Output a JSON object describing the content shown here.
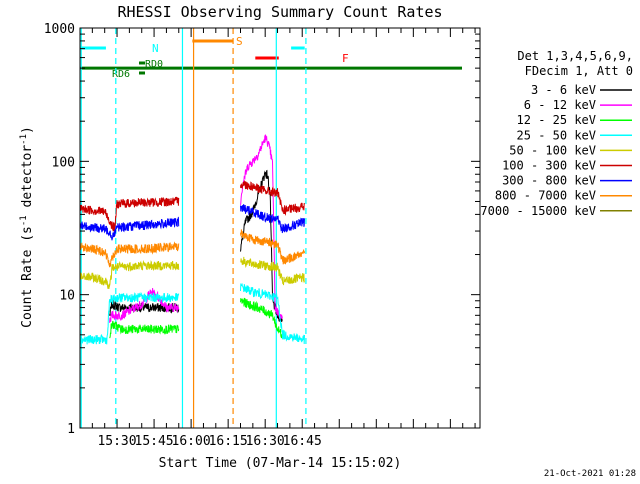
{
  "chart_data": {
    "type": "line",
    "title": "RHESSI Observing Summary Count Rates",
    "xlabel": "Start Time (07-Mar-14 15:15:02)",
    "ylabel_main": "Count Rate (s",
    "ylabel_sup1": "-1",
    "ylabel_mid": " detector",
    "ylabel_sup2": "-1",
    "ylabel_close": ")",
    "yscale": "log",
    "ylim": [
      1,
      1000
    ],
    "xlim_min": [
      15,
      177
    ],
    "y_ticks": [
      "1",
      "10",
      "100",
      "1000"
    ],
    "x_ticks": [
      {
        "label": "15:30",
        "min": 30
      },
      {
        "label": "15:45",
        "min": 45
      },
      {
        "label": "16:00",
        "min": 60
      },
      {
        "label": "16:15",
        "min": 75
      },
      {
        "label": "16:30",
        "min": 90
      },
      {
        "label": "16:45",
        "min": 105
      }
    ],
    "legend_header": [
      "Det 1,3,4,5,6,9,",
      "FDecim 1, Att 0"
    ],
    "series": [
      {
        "name": "3 - 6 keV",
        "color": "#000000",
        "seg1": [
          [
            27,
            7.0
          ],
          [
            28,
            8.5
          ],
          [
            31,
            8.0
          ],
          [
            45,
            8.0
          ],
          [
            55,
            8.0
          ]
        ],
        "seg2": [
          [
            80,
            22
          ],
          [
            82,
            35
          ],
          [
            85,
            42
          ],
          [
            87,
            55
          ],
          [
            89,
            72
          ],
          [
            90,
            82
          ],
          [
            91,
            78
          ],
          [
            92,
            58
          ],
          [
            93,
            9
          ],
          [
            95,
            7.0
          ],
          [
            97,
            6.5
          ]
        ]
      },
      {
        "name": "6 - 12 keV",
        "color": "#ff00ff",
        "seg1": [
          [
            27,
            6.5
          ],
          [
            28,
            7.0
          ],
          [
            32,
            7.0
          ],
          [
            40,
            8.5
          ],
          [
            44,
            10.5
          ],
          [
            47,
            9.5
          ],
          [
            50,
            8.0
          ],
          [
            55,
            8.0
          ]
        ],
        "seg2": [
          [
            80,
            50
          ],
          [
            81,
            70
          ],
          [
            83,
            92
          ],
          [
            85,
            100
          ],
          [
            87,
            112
          ],
          [
            89,
            135
          ],
          [
            90,
            150
          ],
          [
            91,
            140
          ],
          [
            92,
            120
          ],
          [
            93,
            95
          ],
          [
            94,
            8.0
          ],
          [
            96,
            7.0
          ],
          [
            97,
            6.5
          ]
        ]
      },
      {
        "name": "12 - 25 keV",
        "color": "#00ff00",
        "seg1": [
          [
            27,
            5.0
          ],
          [
            28,
            6.0
          ],
          [
            32,
            5.5
          ],
          [
            45,
            5.5
          ],
          [
            55,
            5.5
          ]
        ],
        "seg2": [
          [
            80,
            9.0
          ],
          [
            83,
            8.5
          ],
          [
            87,
            8.0
          ],
          [
            90,
            7.5
          ],
          [
            93,
            7.0
          ],
          [
            95,
            5.5
          ],
          [
            97,
            5.0
          ]
        ]
      },
      {
        "name": "25 - 50 keV",
        "color": "#00ffff",
        "seg1": [
          [
            15,
            4.6
          ],
          [
            20,
            4.6
          ],
          [
            26,
            4.6
          ],
          [
            27,
            9.0
          ],
          [
            30,
            9.5
          ],
          [
            40,
            9.5
          ],
          [
            55,
            9.5
          ]
        ],
        "seg2": [
          [
            80,
            11.5
          ],
          [
            85,
            10.5
          ],
          [
            90,
            10.0
          ],
          [
            95,
            9.5
          ],
          [
            97,
            5.0
          ],
          [
            106,
            4.6
          ]
        ]
      },
      {
        "name": "50 - 100 keV",
        "color": "#cccc00",
        "seg1": [
          [
            15,
            13.5
          ],
          [
            20,
            13.5
          ],
          [
            26,
            12.5
          ],
          [
            27,
            11.0
          ],
          [
            28,
            16.0
          ],
          [
            40,
            16.5
          ],
          [
            55,
            16.5
          ]
        ],
        "seg2": [
          [
            80,
            18
          ],
          [
            85,
            17
          ],
          [
            90,
            16.5
          ],
          [
            95,
            16.0
          ],
          [
            97,
            12.5
          ],
          [
            106,
            13.5
          ]
        ]
      },
      {
        "name": "100 - 300 keV",
        "color": "#cc0000",
        "seg1": [
          [
            15,
            44
          ],
          [
            20,
            43
          ],
          [
            25,
            42
          ],
          [
            27,
            36
          ],
          [
            28,
            33
          ],
          [
            29,
            31
          ],
          [
            30,
            48
          ],
          [
            40,
            49
          ],
          [
            55,
            50
          ]
        ],
        "seg2": [
          [
            80,
            68
          ],
          [
            85,
            65
          ],
          [
            90,
            60
          ],
          [
            95,
            58
          ],
          [
            97,
            43
          ],
          [
            101,
            44
          ],
          [
            106,
            46
          ]
        ]
      },
      {
        "name": "300 - 800 keV",
        "color": "#0000ff",
        "seg1": [
          [
            15,
            33
          ],
          [
            20,
            32
          ],
          [
            25,
            31
          ],
          [
            27,
            30
          ],
          [
            28,
            27
          ],
          [
            30,
            32
          ],
          [
            40,
            33
          ],
          [
            55,
            35
          ]
        ],
        "seg2": [
          [
            80,
            45
          ],
          [
            85,
            42
          ],
          [
            90,
            38
          ],
          [
            95,
            37
          ],
          [
            97,
            31
          ],
          [
            101,
            33
          ],
          [
            106,
            35
          ]
        ]
      },
      {
        "name": "800 - 7000 keV",
        "color": "#ff8800",
        "seg1": [
          [
            15,
            23
          ],
          [
            20,
            22
          ],
          [
            25,
            21
          ],
          [
            27,
            17
          ],
          [
            28,
            19
          ],
          [
            30,
            22
          ],
          [
            40,
            22
          ],
          [
            55,
            23
          ]
        ],
        "seg2": [
          [
            80,
            29
          ],
          [
            85,
            26
          ],
          [
            90,
            25
          ],
          [
            95,
            24
          ],
          [
            97,
            18
          ],
          [
            101,
            19
          ],
          [
            106,
            21
          ]
        ]
      },
      {
        "name": "7000 - 15000 keV",
        "color": "#808000",
        "seg1": [],
        "seg2": []
      }
    ],
    "annotations": {
      "n_label": "N",
      "n_bars": [
        [
          15,
          25.5
        ],
        [
          100.5,
          106
        ]
      ],
      "s_label": "S",
      "s_bar": [
        60.5,
        77
      ],
      "f_label": "F",
      "f_bar": [
        86,
        95.5
      ],
      "rd0_label": "RD0",
      "rd6_label": "RD6",
      "rd_line_y": 500
    },
    "vlines": [
      {
        "min": 15.5,
        "color": "#00ffff",
        "dash": false
      },
      {
        "min": 29.5,
        "color": "#00ffff",
        "dash": true
      },
      {
        "min": 56.5,
        "color": "#00ffff",
        "dash": false
      },
      {
        "min": 61.0,
        "color": "#ff8800",
        "dash": false
      },
      {
        "min": 77.0,
        "color": "#ff8800",
        "dash": true
      },
      {
        "min": 94.5,
        "color": "#00ffff",
        "dash": false
      },
      {
        "min": 106.5,
        "color": "#00ffff",
        "dash": true
      }
    ],
    "timestamp": "21-Oct-2021 01:28"
  }
}
